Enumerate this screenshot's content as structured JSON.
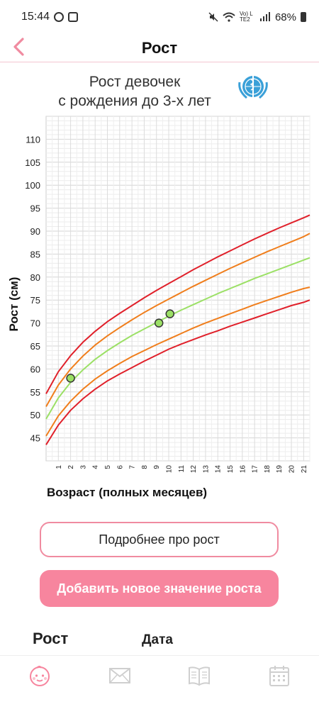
{
  "status_bar": {
    "time": "15:44",
    "network": "Vo) LTE2",
    "battery": "68%"
  },
  "header": {
    "title": "Рост"
  },
  "chart": {
    "title_line1": "Рост девочек",
    "title_line2": "с рождения до 3-х лет"
  },
  "chart_data": {
    "type": "line",
    "xlabel": "Возраст (полных месяцев)",
    "ylabel": "Рост (см)",
    "xlim": [
      0,
      21.5
    ],
    "ylim": [
      40,
      115
    ],
    "y_ticks": [
      45,
      50,
      55,
      60,
      65,
      70,
      75,
      80,
      85,
      90,
      95,
      100,
      105,
      110
    ],
    "x_ticks": [
      1,
      2,
      3,
      4,
      5,
      6,
      7,
      8,
      9,
      10,
      11,
      12,
      13,
      14,
      15,
      16,
      17,
      18,
      19,
      20,
      21
    ],
    "x": [
      0,
      1,
      2,
      3,
      4,
      5,
      6,
      7,
      8,
      9,
      10,
      11,
      12,
      13,
      14,
      15,
      16,
      17,
      18,
      19,
      20,
      21,
      21.5
    ],
    "series": [
      {
        "color": "#e0202a",
        "values": [
          43.5,
          47.8,
          51.0,
          53.5,
          55.6,
          57.4,
          58.9,
          60.3,
          61.7,
          63.0,
          64.3,
          65.4,
          66.4,
          67.4,
          68.3,
          69.3,
          70.2,
          71.1,
          72.0,
          72.9,
          73.8,
          74.5,
          75.0
        ]
      },
      {
        "color": "#f07e1c",
        "values": [
          45.4,
          49.8,
          53.0,
          55.6,
          57.8,
          59.6,
          61.2,
          62.7,
          64.0,
          65.3,
          66.5,
          67.7,
          68.9,
          70.0,
          71.0,
          72.0,
          73.0,
          74.0,
          74.9,
          75.8,
          76.7,
          77.5,
          77.8
        ]
      },
      {
        "color": "#9be065",
        "values": [
          49.1,
          53.7,
          57.1,
          59.8,
          62.1,
          64.0,
          65.7,
          67.3,
          68.7,
          70.1,
          71.5,
          72.8,
          74.0,
          75.2,
          76.4,
          77.5,
          78.6,
          79.7,
          80.7,
          81.7,
          82.7,
          83.7,
          84.2
        ]
      },
      {
        "color": "#f07e1c",
        "values": [
          51.8,
          56.5,
          60.0,
          62.8,
          65.2,
          67.2,
          69.0,
          70.7,
          72.3,
          73.8,
          75.2,
          76.6,
          78.0,
          79.3,
          80.6,
          81.9,
          83.1,
          84.3,
          85.5,
          86.6,
          87.7,
          88.8,
          89.5
        ]
      },
      {
        "color": "#e0202a",
        "values": [
          54.6,
          59.4,
          62.9,
          65.8,
          68.2,
          70.3,
          72.1,
          73.8,
          75.5,
          77.1,
          78.6,
          80.1,
          81.6,
          83.0,
          84.4,
          85.7,
          87.0,
          88.3,
          89.5,
          90.7,
          91.8,
          92.9,
          93.5
        ]
      }
    ],
    "points": [
      {
        "x": 2.0,
        "y": 58.0
      },
      {
        "x": 9.2,
        "y": 70.0
      },
      {
        "x": 10.1,
        "y": 72.0
      }
    ],
    "point_color": "#9be065",
    "grid": true
  },
  "buttons": {
    "more_about_height": "Подробнее про рост",
    "add_height": "Добавить новое значение роста"
  },
  "table": {
    "col_height": "Рост",
    "col_date": "Дата"
  },
  "nav": {
    "items": [
      {
        "icon": "baby-face-icon",
        "color": "#f7859e"
      },
      {
        "icon": "envelope-icon",
        "color": "#cfcfcf"
      },
      {
        "icon": "book-icon",
        "color": "#cfcfcf"
      },
      {
        "icon": "calendar-icon",
        "color": "#cfcfcf"
      }
    ]
  }
}
